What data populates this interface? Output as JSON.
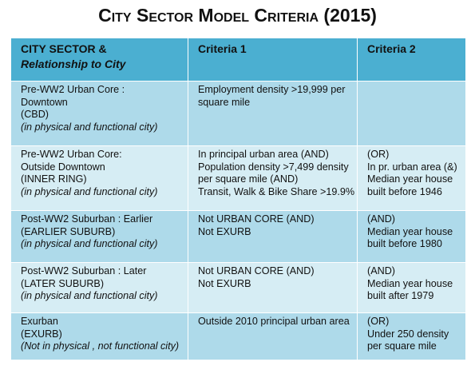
{
  "title": "City Sector Model Criteria (2015)",
  "table": {
    "header": [
      {
        "title": "CITY SECTOR &",
        "subtitle": "Relationship to City"
      },
      {
        "title": "Criteria 1"
      },
      {
        "title": "Criteria 2"
      }
    ],
    "rows": [
      {
        "sector": {
          "lines": [
            "Pre-WW2 Urban Core :",
            "Downtown",
            "(CBD)"
          ],
          "note": "(in physical and functional city)"
        },
        "criteria_1": [
          "Employment density >19,999 per",
          "square mile"
        ],
        "criteria_2": []
      },
      {
        "sector": {
          "lines": [
            "Pre-WW2 Urban Core:",
            "Outside Downtown",
            "(INNER RING)"
          ],
          "note": "(in physical and functional city)"
        },
        "criteria_1": [
          "In principal urban area (AND)",
          "Population density >7,499 density",
          "per square mile (AND)",
          "Transit, Walk & Bike Share >19.9%"
        ],
        "criteria_2": [
          "(OR)",
          "In pr. urban area (&)",
          "Median year house",
          "built before 1946"
        ]
      },
      {
        "sector": {
          "lines": [
            "Post-WW2 Suburban : Earlier",
            "(EARLIER SUBURB)"
          ],
          "note": "(in physical and functional city)"
        },
        "criteria_1": [
          "Not URBAN CORE (AND)",
          "Not EXURB"
        ],
        "criteria_2": [
          "(AND)",
          "Median year house",
          "built before 1980"
        ]
      },
      {
        "sector": {
          "lines": [
            "Post-WW2 Suburban : Later",
            "(LATER SUBURB)"
          ],
          "note": "(in physical and functional city)"
        },
        "criteria_1": [
          "Not URBAN CORE (AND)",
          "Not EXURB"
        ],
        "criteria_2": [
          "(AND)",
          "Median year house",
          "built after 1979"
        ]
      },
      {
        "sector": {
          "lines": [
            "Exurban",
            "(EXURB)"
          ],
          "note": "(Not in physical , not functional city)"
        },
        "criteria_1": [
          "Outside 2010 principal urban area"
        ],
        "criteria_2": [
          "(OR)",
          "Under 250 density",
          "per square mile"
        ]
      }
    ]
  }
}
